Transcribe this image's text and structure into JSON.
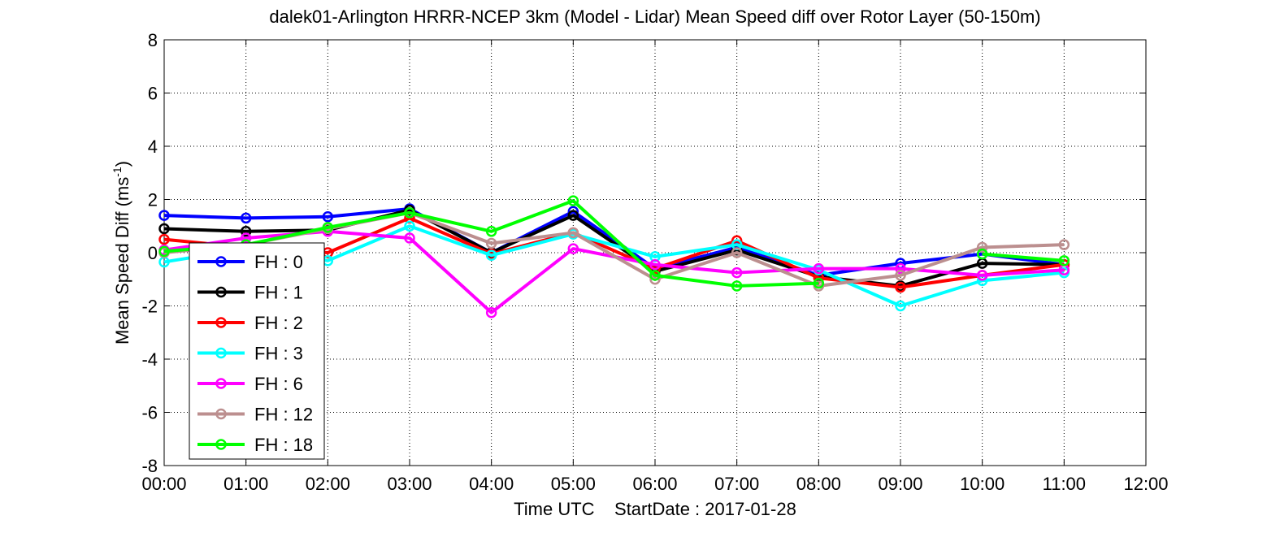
{
  "chart_data": {
    "type": "line",
    "title": "dalek01-Arlington HRRR-NCEP 3km (Model - Lidar) Mean Speed diff over Rotor Layer (50-150m)",
    "xlabel": "Time UTC    StartDate : 2017-01-28",
    "ylabel_main": "Mean Speed Diff (ms",
    "ylabel_sup": "-1",
    "ylabel_close": ")",
    "x_ticks": [
      "00:00",
      "01:00",
      "02:00",
      "03:00",
      "04:00",
      "05:00",
      "06:00",
      "07:00",
      "08:00",
      "09:00",
      "10:00",
      "11:00",
      "12:00"
    ],
    "y_ticks": [
      "-8",
      "-6",
      "-4",
      "-2",
      "0",
      "2",
      "4",
      "6",
      "8"
    ],
    "xlim": [
      0,
      12
    ],
    "ylim": [
      -8,
      8
    ],
    "grid": true,
    "grid_style": "dotted",
    "legend_position": "bottom-left",
    "x": [
      0,
      1,
      2,
      3,
      4,
      5,
      6,
      7,
      8,
      9,
      10,
      11
    ],
    "series": [
      {
        "name": "FH : 0",
        "color": "#0000ff",
        "values": [
          1.4,
          1.3,
          1.35,
          1.65,
          0.0,
          1.55,
          -0.6,
          0.2,
          -0.85,
          -0.4,
          -0.05,
          -0.45
        ]
      },
      {
        "name": "FH : 1",
        "color": "#000000",
        "values": [
          0.9,
          0.8,
          0.85,
          1.6,
          0.0,
          1.4,
          -0.7,
          0.1,
          -0.9,
          -1.25,
          -0.4,
          -0.45
        ]
      },
      {
        "name": "FH : 2",
        "color": "#ff0000",
        "values": [
          0.5,
          0.2,
          0.0,
          1.3,
          -0.05,
          0.75,
          -0.6,
          0.45,
          -0.95,
          -1.3,
          -0.85,
          -0.45
        ]
      },
      {
        "name": "FH : 3",
        "color": "#00ffff",
        "values": [
          -0.35,
          0.15,
          -0.3,
          1.0,
          -0.1,
          0.7,
          -0.15,
          0.3,
          -0.65,
          -2.0,
          -1.05,
          -0.75
        ]
      },
      {
        "name": "FH : 6",
        "color": "#ff00ff",
        "values": [
          0.1,
          0.55,
          0.8,
          0.55,
          -2.25,
          0.15,
          -0.45,
          -0.75,
          -0.6,
          -0.6,
          -0.85,
          -0.65
        ]
      },
      {
        "name": "FH : 12",
        "color": "#bc8f8f",
        "values": [
          0.0,
          0.3,
          0.9,
          1.5,
          0.35,
          0.75,
          -1.0,
          0.0,
          -1.25,
          -0.85,
          0.2,
          0.3
        ]
      },
      {
        "name": "FH : 18",
        "color": "#00ff00",
        "values": [
          0.05,
          0.3,
          0.95,
          1.5,
          0.8,
          1.95,
          -0.85,
          -1.25,
          -1.15,
          null,
          -0.05,
          -0.3
        ]
      }
    ]
  }
}
